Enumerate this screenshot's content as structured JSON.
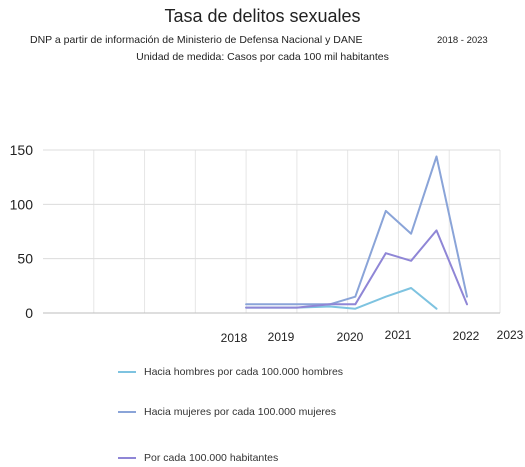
{
  "chart_data": {
    "type": "line",
    "title": "Tasa de delitos sexuales",
    "subtitle": "DNP a partir de información de Ministerio de Defensa Nacional y DANE",
    "subtitle2": "Unidad de medida: Casos por cada 100 mil habitantes",
    "period": "2018 - 2023",
    "xlabel": "",
    "ylabel": "",
    "ylim": [
      0,
      150
    ],
    "yticks": [
      0,
      50,
      100,
      150
    ],
    "xticks": [
      "2018",
      "2019",
      "2020",
      "2021",
      "2022",
      "2023"
    ],
    "grid": true,
    "legend_position": "bottom",
    "series": [
      {
        "name": "Hacia hombres por cada 100.000 hombres",
        "color": "#7ec3e0",
        "x": [
          2018.0,
          2019.0,
          2019.65,
          2020.15,
          2020.75,
          2021.25,
          2021.75
        ],
        "values": [
          5,
          5,
          6,
          4,
          15,
          23,
          4
        ]
      },
      {
        "name": "Hacia mujeres por cada 100.000 mujeres",
        "color": "#8aa4d8",
        "x": [
          2018.0,
          2019.0,
          2019.65,
          2020.15,
          2020.75,
          2021.25,
          2021.75,
          2022.35
        ],
        "values": [
          8,
          8,
          8,
          15,
          94,
          73,
          144,
          15
        ]
      },
      {
        "name": "Por cada 100.000 habitantes",
        "color": "#8f86d6",
        "x": [
          2018.0,
          2019.0,
          2019.65,
          2020.15,
          2020.75,
          2021.25,
          2021.75,
          2022.35
        ],
        "values": [
          5,
          5,
          8,
          8,
          55,
          48,
          76,
          8
        ]
      }
    ]
  }
}
